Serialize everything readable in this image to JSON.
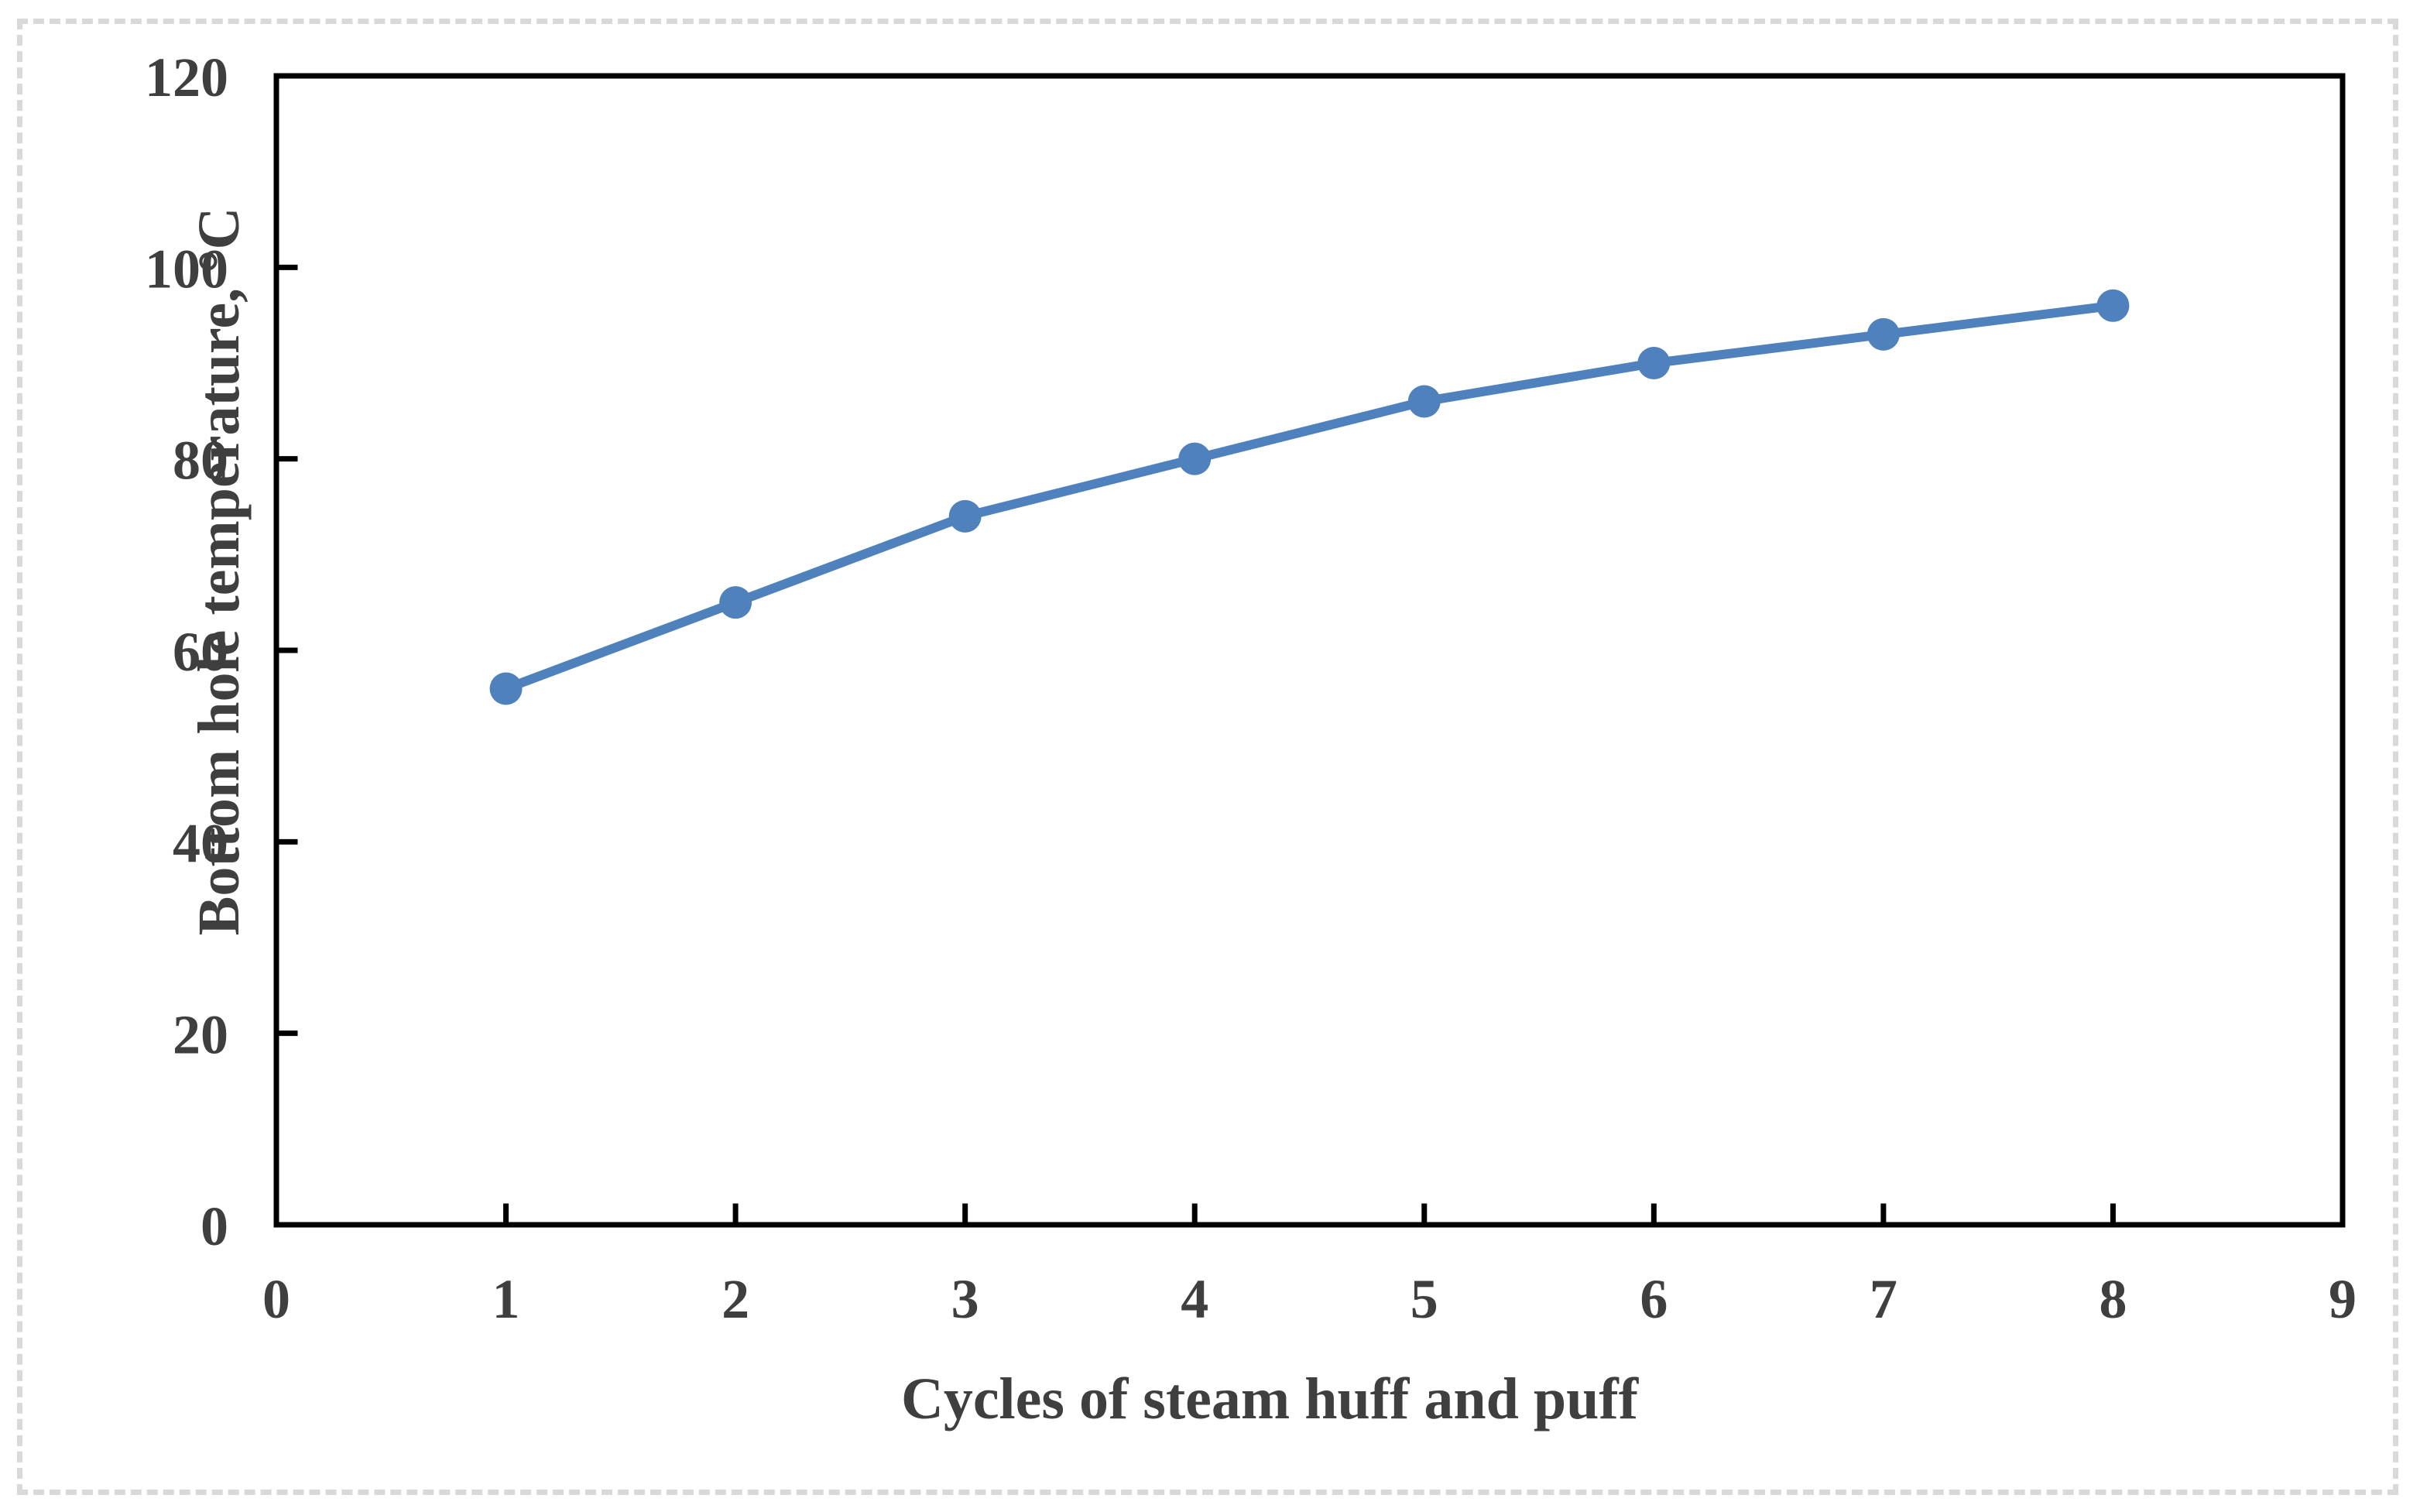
{
  "figure": {
    "background_color": "#ffffff",
    "border_color": "#d9d9d9"
  },
  "chart_data": {
    "type": "line",
    "title": "",
    "xlabel": "Cycles of steam huff and puff",
    "ylabel": "Bottom hole temperature, °C",
    "x": [
      1,
      2,
      3,
      4,
      5,
      6,
      7,
      8
    ],
    "series": [
      {
        "name": "Bottom hole temperature",
        "color": "#4F81BD",
        "marker": "circle",
        "values": [
          56,
          65,
          74,
          80,
          86,
          90,
          93,
          96
        ]
      }
    ],
    "xlim": [
      0,
      9
    ],
    "ylim": [
      0,
      120
    ],
    "x_ticks": [
      0,
      1,
      2,
      3,
      4,
      5,
      6,
      7,
      8,
      9
    ],
    "x_tick_labels": [
      "0",
      "1",
      "2",
      "3",
      "4",
      "5",
      "6",
      "7",
      "8",
      "9"
    ],
    "y_ticks": [
      0,
      20,
      40,
      60,
      80,
      100,
      120
    ],
    "y_tick_labels": [
      "0",
      "20",
      "40",
      "60",
      "80",
      "100",
      "120"
    ],
    "grid": false,
    "legend": false,
    "tick_style": "inside",
    "axis_color": "#000000",
    "tick_label_color": "#3f3f3f"
  }
}
